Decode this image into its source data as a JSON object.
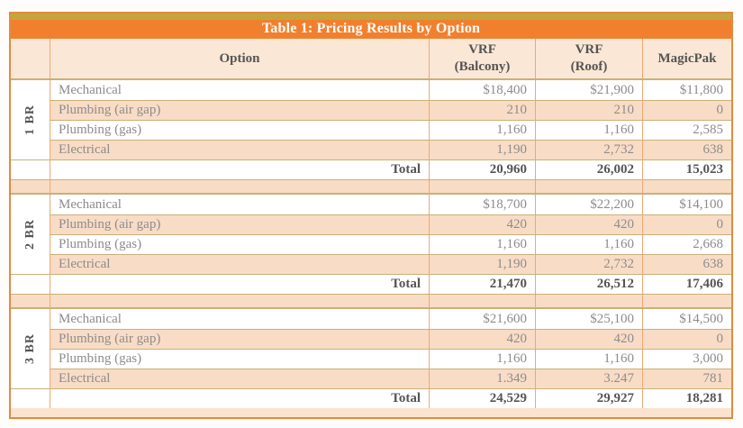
{
  "title": "Table 1: Pricing Results by Option",
  "header": {
    "option_label": "Option",
    "col1": "VRF\n(Balcony)",
    "col2": "VRF\n(Roof)",
    "col3": "MagicPak"
  },
  "sections": [
    {
      "group": "1 BR",
      "rows": [
        {
          "label": "Mechanical",
          "values": [
            "$18,400",
            "$21,900",
            "$11,800"
          ]
        },
        {
          "label": "Plumbing (air gap)",
          "values": [
            "210",
            "210",
            "0"
          ]
        },
        {
          "label": "Plumbing (gas)",
          "values": [
            "1,160",
            "1,160",
            "2,585"
          ]
        },
        {
          "label": "Electrical",
          "values": [
            "1,190",
            "2,732",
            "638"
          ]
        }
      ],
      "total": {
        "label": "Total",
        "values": [
          "20,960",
          "26,002",
          "15,023"
        ]
      }
    },
    {
      "group": "2 BR",
      "rows": [
        {
          "label": "Mechanical",
          "values": [
            "$18,700",
            "$22,200",
            "$14,100"
          ]
        },
        {
          "label": "Plumbing (air gap)",
          "values": [
            "420",
            "420",
            "0"
          ]
        },
        {
          "label": "Plumbing (gas)",
          "values": [
            "1,160",
            "1,160",
            "2,668"
          ]
        },
        {
          "label": "Electrical",
          "values": [
            "1,190",
            "2,732",
            "638"
          ]
        }
      ],
      "total": {
        "label": "Total",
        "values": [
          "21,470",
          "26,512",
          "17,406"
        ]
      }
    },
    {
      "group": "3 BR",
      "rows": [
        {
          "label": "Mechanical",
          "values": [
            "$21,600",
            "$25,100",
            "$14,500"
          ]
        },
        {
          "label": "Plumbing (air gap)",
          "values": [
            "420",
            "420",
            "0"
          ]
        },
        {
          "label": "Plumbing (gas)",
          "values": [
            "1,160",
            "1,160",
            "3,000"
          ]
        },
        {
          "label": "Electrical",
          "values": [
            "1.349",
            "3.247",
            "781"
          ]
        }
      ],
      "total": {
        "label": "Total",
        "values": [
          "24,529",
          "29,927",
          "18,281"
        ]
      }
    }
  ],
  "colors": {
    "title-orange": "#f1802e",
    "title-gold": "#c6a33e",
    "peach-row": "#f9dcc6",
    "peach-header": "#fbe7d6",
    "frame-bg": "#fbe3d0",
    "border-orange": "#efa873",
    "border-gold": "#c9b077",
    "border-outer": "#e08c3e",
    "text-gray": "#8c8c8c",
    "text-dark": "#555555"
  }
}
